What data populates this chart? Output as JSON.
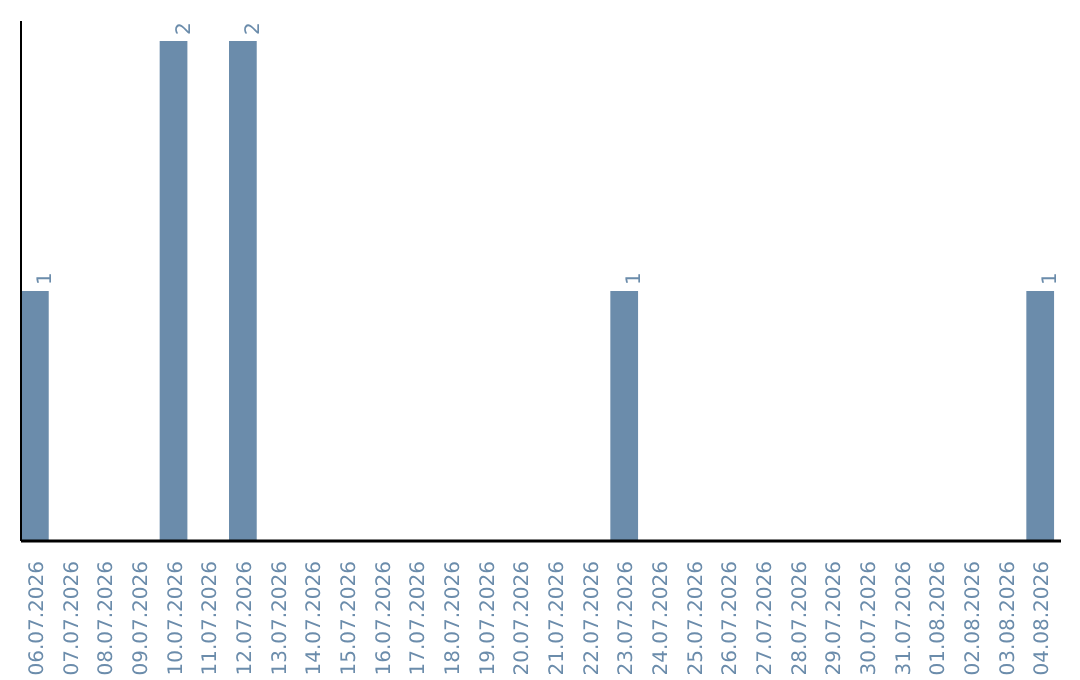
{
  "chart_data": {
    "type": "bar",
    "categories": [
      "06.07.2026",
      "07.07.2026",
      "08.07.2026",
      "09.07.2026",
      "10.07.2026",
      "11.07.2026",
      "12.07.2026",
      "13.07.2026",
      "14.07.2026",
      "15.07.2026",
      "16.07.2026",
      "17.07.2026",
      "18.07.2026",
      "19.07.2026",
      "20.07.2026",
      "21.07.2026",
      "22.07.2026",
      "23.07.2026",
      "24.07.2026",
      "25.07.2026",
      "26.07.2026",
      "27.07.2026",
      "28.07.2026",
      "29.07.2026",
      "30.07.2026",
      "31.07.2026",
      "01.08.2026",
      "02.08.2026",
      "03.08.2026",
      "04.08.2026"
    ],
    "values": [
      1,
      0,
      0,
      0,
      2,
      0,
      2,
      0,
      0,
      0,
      0,
      0,
      0,
      0,
      0,
      0,
      0,
      1,
      0,
      0,
      0,
      0,
      0,
      0,
      0,
      0,
      0,
      0,
      0,
      1
    ],
    "value_labels": [
      "1",
      null,
      null,
      null,
      "2",
      null,
      "2",
      null,
      null,
      null,
      null,
      null,
      null,
      null,
      null,
      null,
      null,
      "1",
      null,
      null,
      null,
      null,
      null,
      null,
      null,
      null,
      null,
      null,
      null,
      "1"
    ],
    "color": "#6b8cab",
    "ylim": [
      0,
      2.08
    ],
    "tick_labels": "x"
  }
}
